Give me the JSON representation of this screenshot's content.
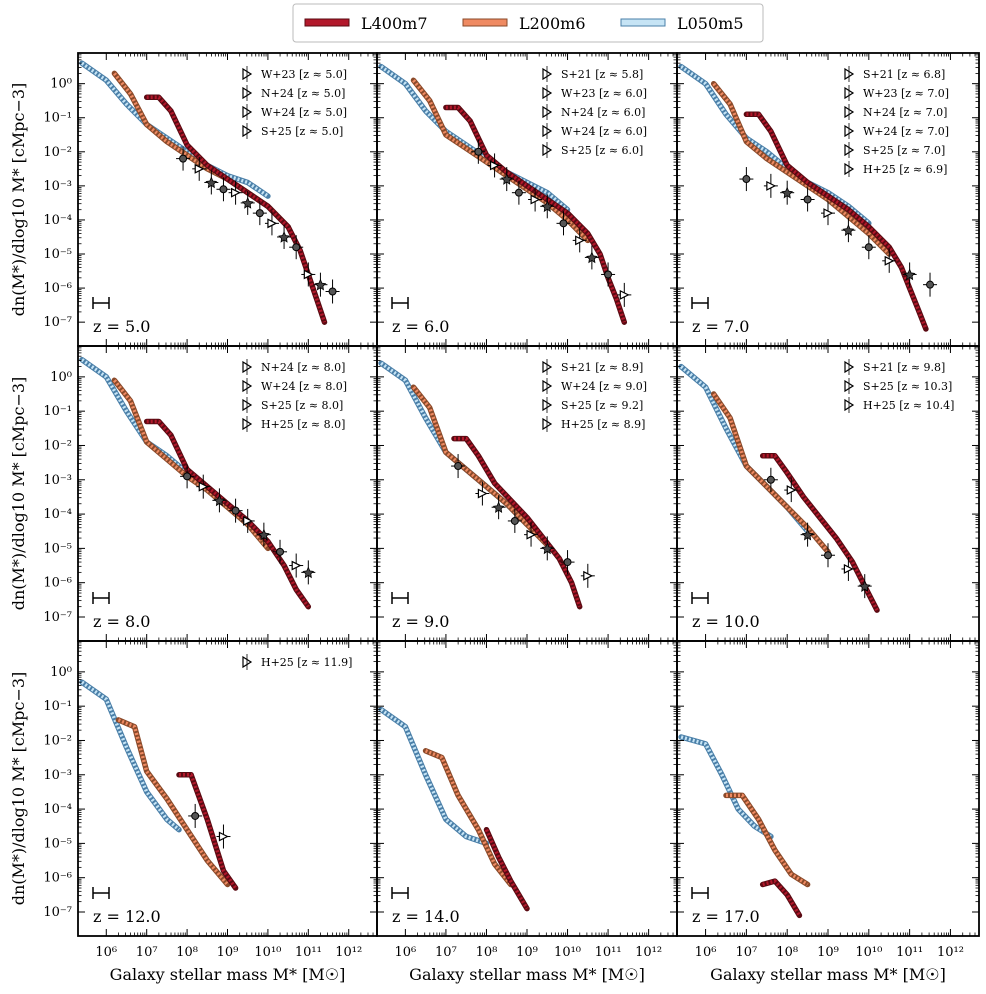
{
  "legend": [
    {
      "name": "L400m7",
      "color": "#b2182b",
      "edge": "#5a0a12"
    },
    {
      "name": "L200m6",
      "color": "#ef8a62",
      "edge": "#8a4a2a"
    },
    {
      "name": "L050m5",
      "color": "#c6e4f5",
      "edge": "#4a7fa8"
    }
  ],
  "axes": {
    "xlabel": "Galaxy stellar mass M* [M☉]",
    "ylabel": "dn(M*)/dlog10 M* [cMpc−3]",
    "xlim_log": [
      5.3,
      12.7
    ],
    "ylim_log": [
      -7.7,
      0.9
    ],
    "xticks": [
      {
        "v": 6,
        "t": "10⁶"
      },
      {
        "v": 7,
        "t": "10⁷"
      },
      {
        "v": 8,
        "t": "10⁸"
      },
      {
        "v": 9,
        "t": "10⁹"
      },
      {
        "v": 10,
        "t": "10¹⁰"
      },
      {
        "v": 11,
        "t": "10¹¹"
      },
      {
        "v": 12,
        "t": "10¹²"
      }
    ],
    "yticks": [
      {
        "v": 0,
        "t": "10⁰"
      },
      {
        "v": -1,
        "t": "10⁻¹"
      },
      {
        "v": -2,
        "t": "10⁻²"
      },
      {
        "v": -3,
        "t": "10⁻³"
      },
      {
        "v": -4,
        "t": "10⁻⁴"
      },
      {
        "v": -5,
        "t": "10⁻⁵"
      },
      {
        "v": -6,
        "t": "10⁻⁶"
      },
      {
        "v": -7,
        "t": "10⁻⁷"
      }
    ]
  },
  "chart_data": {
    "type": "line",
    "title": "",
    "xlabel": "Galaxy stellar mass M* [M☉]",
    "ylabel": "dn(M*)/dlog10 M* [cMpc−3]",
    "note": "values are log10 mass and log10 number density",
    "panels": [
      {
        "z": "z = 5.0",
        "observations": [
          "W+23 [z ≈ 5.0]",
          "N+24 [z ≈ 5.0]",
          "W+24 [z ≈ 5.0]",
          "S+25 [z ≈ 5.0]"
        ],
        "series": [
          {
            "name": "L050m5",
            "x": [
              5.4,
              6.0,
              6.5,
              7.0,
              7.5,
              8.0,
              8.5,
              9.0,
              9.5,
              10.0
            ],
            "y": [
              0.6,
              0.1,
              -0.6,
              -1.2,
              -1.6,
              -2.0,
              -2.4,
              -2.7,
              -2.9,
              -3.3
            ]
          },
          {
            "name": "L200m6",
            "x": [
              6.2,
              6.6,
              7.0,
              7.5,
              8.0,
              8.5,
              9.0,
              9.5,
              10.0,
              10.5
            ],
            "y": [
              0.3,
              -0.3,
              -1.2,
              -1.7,
              -2.1,
              -2.5,
              -2.8,
              -3.2,
              -3.6,
              -4.2
            ]
          },
          {
            "name": "L400m7",
            "x": [
              7.0,
              7.3,
              7.6,
              8.0,
              8.5,
              9.0,
              9.5,
              10.0,
              10.5,
              10.8,
              11.0,
              11.2,
              11.4
            ],
            "y": [
              -0.4,
              -0.4,
              -0.8,
              -1.8,
              -2.4,
              -2.8,
              -3.2,
              -3.6,
              -4.2,
              -4.9,
              -5.6,
              -6.3,
              -7.0
            ]
          }
        ],
        "points": [
          {
            "x": 7.9,
            "y": -2.2
          },
          {
            "x": 8.3,
            "y": -2.5
          },
          {
            "x": 8.6,
            "y": -2.9
          },
          {
            "x": 8.9,
            "y": -3.1
          },
          {
            "x": 9.2,
            "y": -3.2
          },
          {
            "x": 9.5,
            "y": -3.5
          },
          {
            "x": 9.8,
            "y": -3.8
          },
          {
            "x": 10.1,
            "y": -4.1
          },
          {
            "x": 10.4,
            "y": -4.5
          },
          {
            "x": 10.7,
            "y": -4.8
          },
          {
            "x": 11.0,
            "y": -5.6
          },
          {
            "x": 11.3,
            "y": -5.9
          },
          {
            "x": 11.6,
            "y": -6.1
          }
        ]
      },
      {
        "z": "z = 6.0",
        "observations": [
          "S+21 [z ≈ 5.8]",
          "W+23 [z ≈ 6.0]",
          "N+24 [z ≈ 6.0]",
          "W+24 [z ≈ 6.0]",
          "S+25 [z ≈ 6.0]"
        ],
        "series": [
          {
            "name": "L050m5",
            "x": [
              5.4,
              6.0,
              6.5,
              7.0,
              7.5,
              8.0,
              8.5,
              9.0,
              9.5,
              10.0
            ],
            "y": [
              0.5,
              0.0,
              -0.8,
              -1.4,
              -1.8,
              -2.2,
              -2.6,
              -2.9,
              -3.2,
              -3.7
            ]
          },
          {
            "name": "L200m6",
            "x": [
              6.2,
              6.6,
              7.0,
              7.5,
              8.0,
              8.5,
              9.0,
              9.5,
              10.0,
              10.5
            ],
            "y": [
              0.1,
              -0.5,
              -1.5,
              -1.9,
              -2.3,
              -2.7,
              -3.1,
              -3.5,
              -4.0,
              -4.6
            ]
          },
          {
            "name": "L400m7",
            "x": [
              7.0,
              7.3,
              7.6,
              8.0,
              8.5,
              9.0,
              9.5,
              10.0,
              10.5,
              10.8,
              11.0,
              11.2,
              11.4
            ],
            "y": [
              -0.7,
              -0.7,
              -1.1,
              -2.1,
              -2.6,
              -3.0,
              -3.4,
              -3.8,
              -4.4,
              -5.0,
              -5.7,
              -6.3,
              -7.0
            ]
          }
        ],
        "points": [
          {
            "x": 7.8,
            "y": -2.0
          },
          {
            "x": 8.2,
            "y": -2.4
          },
          {
            "x": 8.5,
            "y": -2.8
          },
          {
            "x": 8.8,
            "y": -3.2
          },
          {
            "x": 9.2,
            "y": -3.4
          },
          {
            "x": 9.5,
            "y": -3.6
          },
          {
            "x": 9.9,
            "y": -4.1
          },
          {
            "x": 10.3,
            "y": -4.6
          },
          {
            "x": 10.6,
            "y": -5.1
          },
          {
            "x": 11.0,
            "y": -5.6
          },
          {
            "x": 11.4,
            "y": -6.2
          }
        ]
      },
      {
        "z": "z = 7.0",
        "observations": [
          "S+21 [z ≈ 6.8]",
          "W+23 [z ≈ 7.0]",
          "N+24 [z ≈ 7.0]",
          "W+24 [z ≈ 7.0]",
          "S+25 [z ≈ 7.0]",
          "H+25 [z ≈ 6.9]"
        ],
        "series": [
          {
            "name": "L050m5",
            "x": [
              5.4,
              6.0,
              6.5,
              7.0,
              7.5,
              8.0,
              8.5,
              9.0,
              9.5,
              10.0
            ],
            "y": [
              0.5,
              0.0,
              -0.9,
              -1.6,
              -2.0,
              -2.5,
              -2.9,
              -3.2,
              -3.6,
              -4.1
            ]
          },
          {
            "name": "L200m6",
            "x": [
              6.2,
              6.6,
              7.0,
              7.5,
              8.0,
              8.5,
              9.0,
              9.5,
              10.0,
              10.5
            ],
            "y": [
              0.0,
              -0.6,
              -1.7,
              -2.2,
              -2.6,
              -3.0,
              -3.4,
              -3.9,
              -4.4,
              -5.0
            ]
          },
          {
            "name": "L400m7",
            "x": [
              7.0,
              7.3,
              7.6,
              8.0,
              8.5,
              9.0,
              9.5,
              10.0,
              10.5,
              10.8,
              11.0,
              11.2,
              11.4
            ],
            "y": [
              -0.9,
              -0.9,
              -1.4,
              -2.4,
              -2.9,
              -3.3,
              -3.7,
              -4.2,
              -4.8,
              -5.4,
              -6.0,
              -6.6,
              -7.2
            ]
          }
        ],
        "points": [
          {
            "x": 7.0,
            "y": -2.8
          },
          {
            "x": 7.6,
            "y": -3.0
          },
          {
            "x": 8.0,
            "y": -3.2
          },
          {
            "x": 8.5,
            "y": -3.4
          },
          {
            "x": 9.0,
            "y": -3.8
          },
          {
            "x": 9.5,
            "y": -4.3
          },
          {
            "x": 10.0,
            "y": -4.8
          },
          {
            "x": 10.5,
            "y": -5.2
          },
          {
            "x": 11.0,
            "y": -5.6
          },
          {
            "x": 11.5,
            "y": -5.9
          }
        ]
      },
      {
        "z": "z = 8.0",
        "observations": [
          "N+24 [z ≈ 8.0]",
          "W+24 [z ≈ 8.0]",
          "S+25 [z ≈ 8.0]",
          "H+25 [z ≈ 8.0]"
        ],
        "series": [
          {
            "name": "L050m5",
            "x": [
              5.4,
              6.0,
              6.5,
              7.0,
              7.5,
              8.0,
              8.5,
              9.0,
              9.5
            ],
            "y": [
              0.5,
              0.0,
              -1.0,
              -1.9,
              -2.3,
              -2.8,
              -3.3,
              -3.7,
              -4.3
            ]
          },
          {
            "name": "L200m6",
            "x": [
              6.2,
              6.6,
              7.0,
              7.5,
              8.0,
              8.5,
              9.0,
              9.5,
              10.0
            ],
            "y": [
              -0.1,
              -0.7,
              -1.9,
              -2.4,
              -2.9,
              -3.3,
              -3.8,
              -4.3,
              -5.0
            ]
          },
          {
            "name": "L400m7",
            "x": [
              7.0,
              7.3,
              7.6,
              8.0,
              8.5,
              9.0,
              9.5,
              10.0,
              10.4,
              10.7,
              11.0
            ],
            "y": [
              -1.3,
              -1.3,
              -1.7,
              -2.7,
              -3.2,
              -3.7,
              -4.2,
              -4.8,
              -5.5,
              -6.2,
              -6.7
            ]
          }
        ],
        "points": [
          {
            "x": 8.0,
            "y": -2.9
          },
          {
            "x": 8.4,
            "y": -3.2
          },
          {
            "x": 8.8,
            "y": -3.6
          },
          {
            "x": 9.2,
            "y": -3.9
          },
          {
            "x": 9.5,
            "y": -4.2
          },
          {
            "x": 9.9,
            "y": -4.6
          },
          {
            "x": 10.3,
            "y": -5.1
          },
          {
            "x": 10.7,
            "y": -5.5
          },
          {
            "x": 11.0,
            "y": -5.7
          }
        ]
      },
      {
        "z": "z = 9.0",
        "observations": [
          "S+21 [z ≈ 8.9]",
          "W+24 [z ≈ 9.0]",
          "S+25 [z ≈ 9.2]",
          "H+25 [z ≈ 8.9]"
        ],
        "series": [
          {
            "name": "L050m5",
            "x": [
              5.4,
              6.0,
              6.5,
              7.0,
              7.5,
              8.0,
              8.5,
              9.0
            ],
            "y": [
              0.4,
              -0.1,
              -1.2,
              -2.2,
              -2.7,
              -3.2,
              -3.7,
              -4.3
            ]
          },
          {
            "name": "L200m6",
            "x": [
              6.2,
              6.6,
              7.0,
              7.5,
              8.0,
              8.5,
              9.0,
              9.5
            ],
            "y": [
              -0.3,
              -0.9,
              -2.2,
              -2.7,
              -3.2,
              -3.7,
              -4.3,
              -4.9
            ]
          },
          {
            "name": "L400m7",
            "x": [
              7.2,
              7.5,
              7.8,
              8.2,
              8.6,
              9.0,
              9.4,
              9.8,
              10.1,
              10.3
            ],
            "y": [
              -1.8,
              -1.8,
              -2.3,
              -3.1,
              -3.6,
              -4.1,
              -4.7,
              -5.3,
              -6.0,
              -6.7
            ]
          }
        ],
        "points": [
          {
            "x": 7.3,
            "y": -2.6
          },
          {
            "x": 7.9,
            "y": -3.4
          },
          {
            "x": 8.3,
            "y": -3.8
          },
          {
            "x": 8.7,
            "y": -4.2
          },
          {
            "x": 9.1,
            "y": -4.6
          },
          {
            "x": 9.5,
            "y": -5.0
          },
          {
            "x": 10.0,
            "y": -5.4
          },
          {
            "x": 10.5,
            "y": -5.8
          }
        ]
      },
      {
        "z": "z = 10.0",
        "observations": [
          "S+21 [z ≈ 9.8]",
          "S+25 [z ≈ 10.3]",
          "H+25 [z ≈ 10.4]"
        ],
        "series": [
          {
            "name": "L050m5",
            "x": [
              5.4,
              6.0,
              6.5,
              7.0,
              7.5,
              8.0,
              8.5
            ],
            "y": [
              0.3,
              -0.3,
              -1.5,
              -2.6,
              -3.2,
              -3.8,
              -4.5
            ]
          },
          {
            "name": "L200m6",
            "x": [
              6.2,
              6.6,
              7.0,
              7.5,
              8.0,
              8.5,
              9.0
            ],
            "y": [
              -0.5,
              -1.2,
              -2.6,
              -3.2,
              -3.8,
              -4.4,
              -5.1
            ]
          },
          {
            "name": "L400m7",
            "x": [
              7.4,
              7.7,
              8.0,
              8.4,
              8.8,
              9.2,
              9.6,
              9.9,
              10.2
            ],
            "y": [
              -2.3,
              -2.3,
              -2.8,
              -3.5,
              -4.1,
              -4.7,
              -5.4,
              -6.1,
              -6.8
            ]
          }
        ],
        "points": [
          {
            "x": 7.6,
            "y": -3.0
          },
          {
            "x": 8.1,
            "y": -3.3
          },
          {
            "x": 8.5,
            "y": -4.6
          },
          {
            "x": 9.0,
            "y": -5.2
          },
          {
            "x": 9.5,
            "y": -5.6
          },
          {
            "x": 9.9,
            "y": -6.1
          }
        ]
      },
      {
        "z": "z = 12.0",
        "observations": [
          "H+25 [z ≈ 11.9]"
        ],
        "series": [
          {
            "name": "L050m5",
            "x": [
              5.4,
              6.0,
              6.5,
              7.0,
              7.5,
              7.8
            ],
            "y": [
              -0.3,
              -0.8,
              -2.2,
              -3.5,
              -4.3,
              -4.6
            ]
          },
          {
            "name": "L200m6",
            "x": [
              6.3,
              6.7,
              7.0,
              7.5,
              8.0,
              8.5,
              9.0
            ],
            "y": [
              -1.4,
              -1.6,
              -2.9,
              -3.7,
              -4.6,
              -5.5,
              -6.2
            ]
          },
          {
            "name": "L400m7",
            "x": [
              7.8,
              8.1,
              8.5,
              8.9,
              9.2
            ],
            "y": [
              -3.0,
              -3.0,
              -4.3,
              -5.8,
              -6.3
            ]
          }
        ],
        "points": [
          {
            "x": 8.2,
            "y": -4.2
          },
          {
            "x": 8.9,
            "y": -4.8
          }
        ]
      },
      {
        "z": "z = 14.0",
        "observations": [],
        "series": [
          {
            "name": "L050m5",
            "x": [
              5.4,
              6.0,
              6.5,
              7.0,
              7.5,
              8.0
            ],
            "y": [
              -1.1,
              -1.6,
              -3.0,
              -4.3,
              -4.8,
              -5.0
            ]
          },
          {
            "name": "L200m6",
            "x": [
              6.5,
              6.9,
              7.3,
              7.8,
              8.2,
              8.6
            ],
            "y": [
              -2.3,
              -2.5,
              -3.6,
              -4.6,
              -5.6,
              -6.2
            ]
          },
          {
            "name": "L400m7",
            "x": [
              8.0,
              8.3,
              8.6,
              9.0
            ],
            "y": [
              -4.6,
              -5.4,
              -6.1,
              -6.9
            ]
          }
        ],
        "points": []
      },
      {
        "z": "z = 17.0",
        "observations": [],
        "series": [
          {
            "name": "L050m5",
            "x": [
              5.4,
              6.0,
              6.4,
              6.8,
              7.2,
              7.6
            ],
            "y": [
              -1.9,
              -2.1,
              -3.0,
              -4.0,
              -4.5,
              -4.8
            ]
          },
          {
            "name": "L200m6",
            "x": [
              6.5,
              6.9,
              7.3,
              7.7,
              8.1,
              8.5
            ],
            "y": [
              -3.6,
              -3.6,
              -4.3,
              -5.2,
              -5.9,
              -6.2
            ]
          },
          {
            "name": "L400m7",
            "x": [
              7.4,
              7.7,
              8.0,
              8.3
            ],
            "y": [
              -6.2,
              -6.1,
              -6.5,
              -7.1
            ]
          }
        ],
        "points": []
      }
    ]
  }
}
